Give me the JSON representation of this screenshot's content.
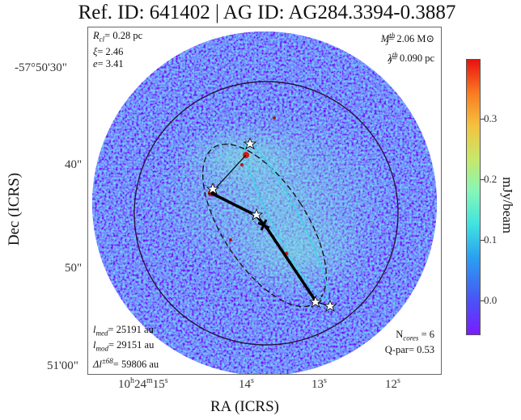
{
  "title": "Ref. ID: 641402 | AG ID: AG284.3394-0.3887",
  "annotations": {
    "top_left": [
      {
        "symbol": "R",
        "sub": "cl",
        "value": "= 0.28 pc"
      },
      {
        "symbol": "ξ",
        "sub": "",
        "value": "= 2.46"
      },
      {
        "symbol": "e",
        "sub": "",
        "value": "= 3.41"
      }
    ],
    "top_right": [
      {
        "symbol": "M",
        "sup": "th",
        "sub": "J",
        "value": "= 2.06 M⊙"
      },
      {
        "symbol": "λ",
        "sup": "th",
        "sub": "J",
        "value": "= 0.090 pc"
      }
    ],
    "bottom_left": [
      {
        "symbol": "l",
        "sub": "med",
        "sup": "",
        "value": "= 25191 au"
      },
      {
        "symbol": "l",
        "sub": "mod",
        "sup": "",
        "value": "= 29151 au"
      },
      {
        "symbol": "Δl",
        "sub": "",
        "sup": "±68",
        "value": "= 59806 au"
      }
    ],
    "bottom_right": [
      "N",
      "cores",
      " = 6",
      "Q-par= 0.53"
    ]
  },
  "axes": {
    "xlabel": "RA (ICRS)",
    "ylabel": "Dec (ICRS)",
    "yticks": [
      "-57°50'30\"",
      "40\"",
      "50\"",
      "51'00\""
    ],
    "xticks": [
      {
        "main": "10",
        "u1": "h",
        "m": "24",
        "u2": "m",
        "s": "15",
        "u3": "s"
      },
      {
        "main": "14",
        "u3": "s"
      },
      {
        "main": "13",
        "u3": "s"
      },
      {
        "main": "12",
        "u3": "s"
      }
    ]
  },
  "colorbar": {
    "label": "mJy/beam",
    "ticks": [
      "0.3",
      "0.2",
      "0.1",
      "0.0"
    ],
    "colors": {
      "low": "#7a1cff",
      "mid": "#3fe3e0",
      "high": "#e8120f"
    }
  }
}
